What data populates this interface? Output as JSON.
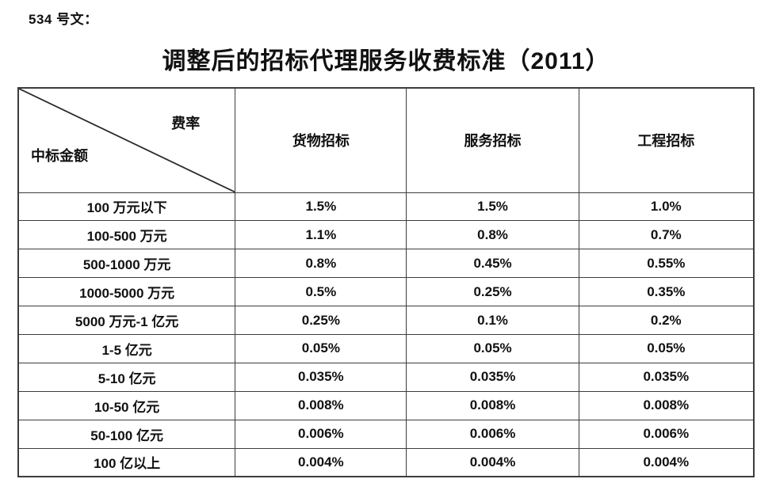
{
  "page": {
    "doc_label": "534 号文：",
    "title": "调整后的招标代理服务收费标准（2011）"
  },
  "table": {
    "corner": {
      "top_right_label": "费率",
      "bottom_left_label": "中标金额"
    },
    "columns": [
      "货物招标",
      "服务招标",
      "工程招标"
    ],
    "rows": [
      {
        "amount": "100 万元以下",
        "goods": "1.5%",
        "services": "1.5%",
        "engineering": "1.0%"
      },
      {
        "amount": "100-500 万元",
        "goods": "1.1%",
        "services": "0.8%",
        "engineering": "0.7%"
      },
      {
        "amount": "500-1000 万元",
        "goods": "0.8%",
        "services": "0.45%",
        "engineering": "0.55%"
      },
      {
        "amount": "1000-5000 万元",
        "goods": "0.5%",
        "services": "0.25%",
        "engineering": "0.35%"
      },
      {
        "amount": "5000 万元-1 亿元",
        "goods": "0.25%",
        "services": "0.1%",
        "engineering": "0.2%"
      },
      {
        "amount": "1-5 亿元",
        "goods": "0.05%",
        "services": "0.05%",
        "engineering": "0.05%"
      },
      {
        "amount": "5-10 亿元",
        "goods": "0.035%",
        "services": "0.035%",
        "engineering": "0.035%"
      },
      {
        "amount": "10-50 亿元",
        "goods": "0.008%",
        "services": "0.008%",
        "engineering": "0.008%"
      },
      {
        "amount": "50-100 亿元",
        "goods": "0.006%",
        "services": "0.006%",
        "engineering": "0.006%"
      },
      {
        "amount": "100 亿以上",
        "goods": "0.004%",
        "services": "0.004%",
        "engineering": "0.004%"
      }
    ]
  }
}
